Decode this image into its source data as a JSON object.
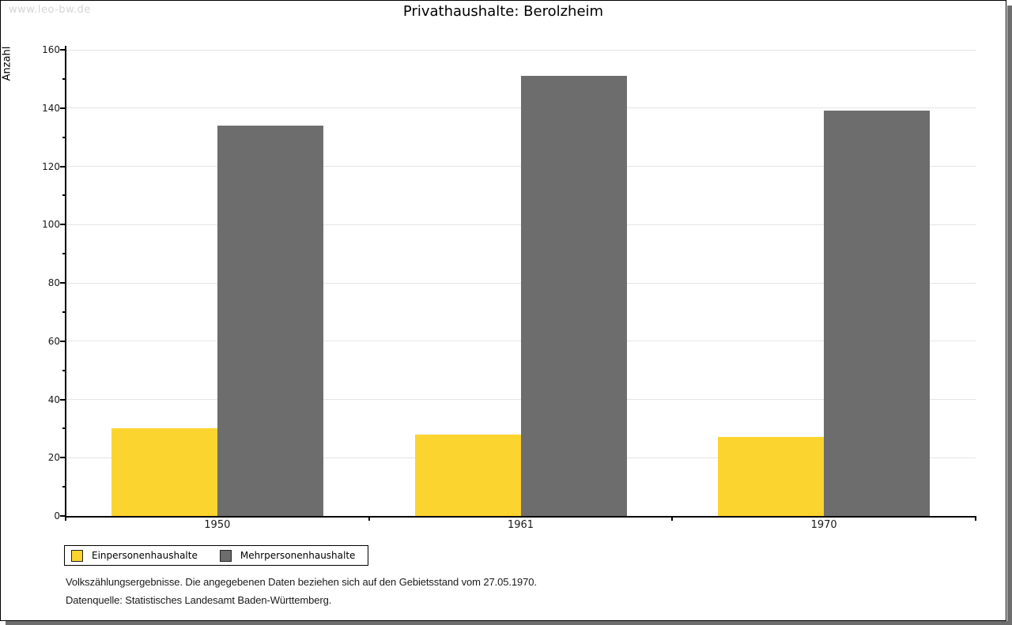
{
  "watermark": "www.leo-bw.de",
  "title": "Privathaushalte: Berolzheim",
  "chart_data": {
    "type": "bar",
    "title": "Privathaushalte: Berolzheim",
    "categories": [
      "1950",
      "1961",
      "1970"
    ],
    "series": [
      {
        "name": "Einpersonenhaushalte",
        "color": "#fcd42f",
        "values": [
          30,
          28,
          27
        ]
      },
      {
        "name": "Mehrpersonenhaushalte",
        "color": "#6d6d6d",
        "values": [
          134,
          151,
          139
        ]
      }
    ],
    "xlabel": "",
    "ylabel": "Anzahl",
    "ylim": [
      0,
      160
    ],
    "ytick_step": 20,
    "minor_tick_step": 10,
    "grid": true,
    "legend_position": "bottom-left"
  },
  "footnotes": [
    "Volkszählungsergebnisse. Die angegebenen Daten beziehen sich auf den Gebietsstand vom 27.05.1970.",
    "Datenquelle: Statistisches Landesamt Baden-Württemberg."
  ]
}
